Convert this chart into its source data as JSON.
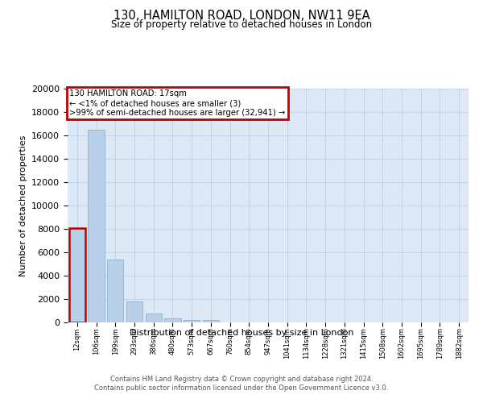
{
  "title": "130, HAMILTON ROAD, LONDON, NW11 9EA",
  "subtitle": "Size of property relative to detached houses in London",
  "xlabel": "Distribution of detached houses by size in London",
  "ylabel": "Number of detached properties",
  "bar_color": "#b8d0e8",
  "bar_edge_color": "#7aaad0",
  "highlight_color": "#c00000",
  "bar_values": [
    8100,
    16500,
    5350,
    1800,
    750,
    320,
    220,
    200,
    0,
    0,
    0,
    0,
    0,
    0,
    0,
    0,
    0,
    0,
    0,
    0,
    0
  ],
  "categories": [
    "12sqm",
    "106sqm",
    "199sqm",
    "293sqm",
    "386sqm",
    "480sqm",
    "573sqm",
    "667sqm",
    "760sqm",
    "854sqm",
    "947sqm",
    "1041sqm",
    "1134sqm",
    "1228sqm",
    "1321sqm",
    "1415sqm",
    "1508sqm",
    "1602sqm",
    "1695sqm",
    "1789sqm",
    "1882sqm"
  ],
  "ylim": [
    0,
    20000
  ],
  "yticks": [
    0,
    2000,
    4000,
    6000,
    8000,
    10000,
    12000,
    14000,
    16000,
    18000,
    20000
  ],
  "annotation_title": "130 HAMILTON ROAD: 17sqm",
  "annotation_line1": "← <1% of detached houses are smaller (3)",
  "annotation_line2": ">99% of semi-detached houses are larger (32,941) →",
  "highlight_bar_index": 0,
  "footer_line1": "Contains HM Land Registry data © Crown copyright and database right 2024.",
  "footer_line2": "Contains public sector information licensed under the Open Government Licence v3.0.",
  "bg_color": "#ffffff",
  "plot_bg_color": "#dce8f5",
  "grid_color": "#bdd0e4",
  "annotation_box_color": "#c00000"
}
